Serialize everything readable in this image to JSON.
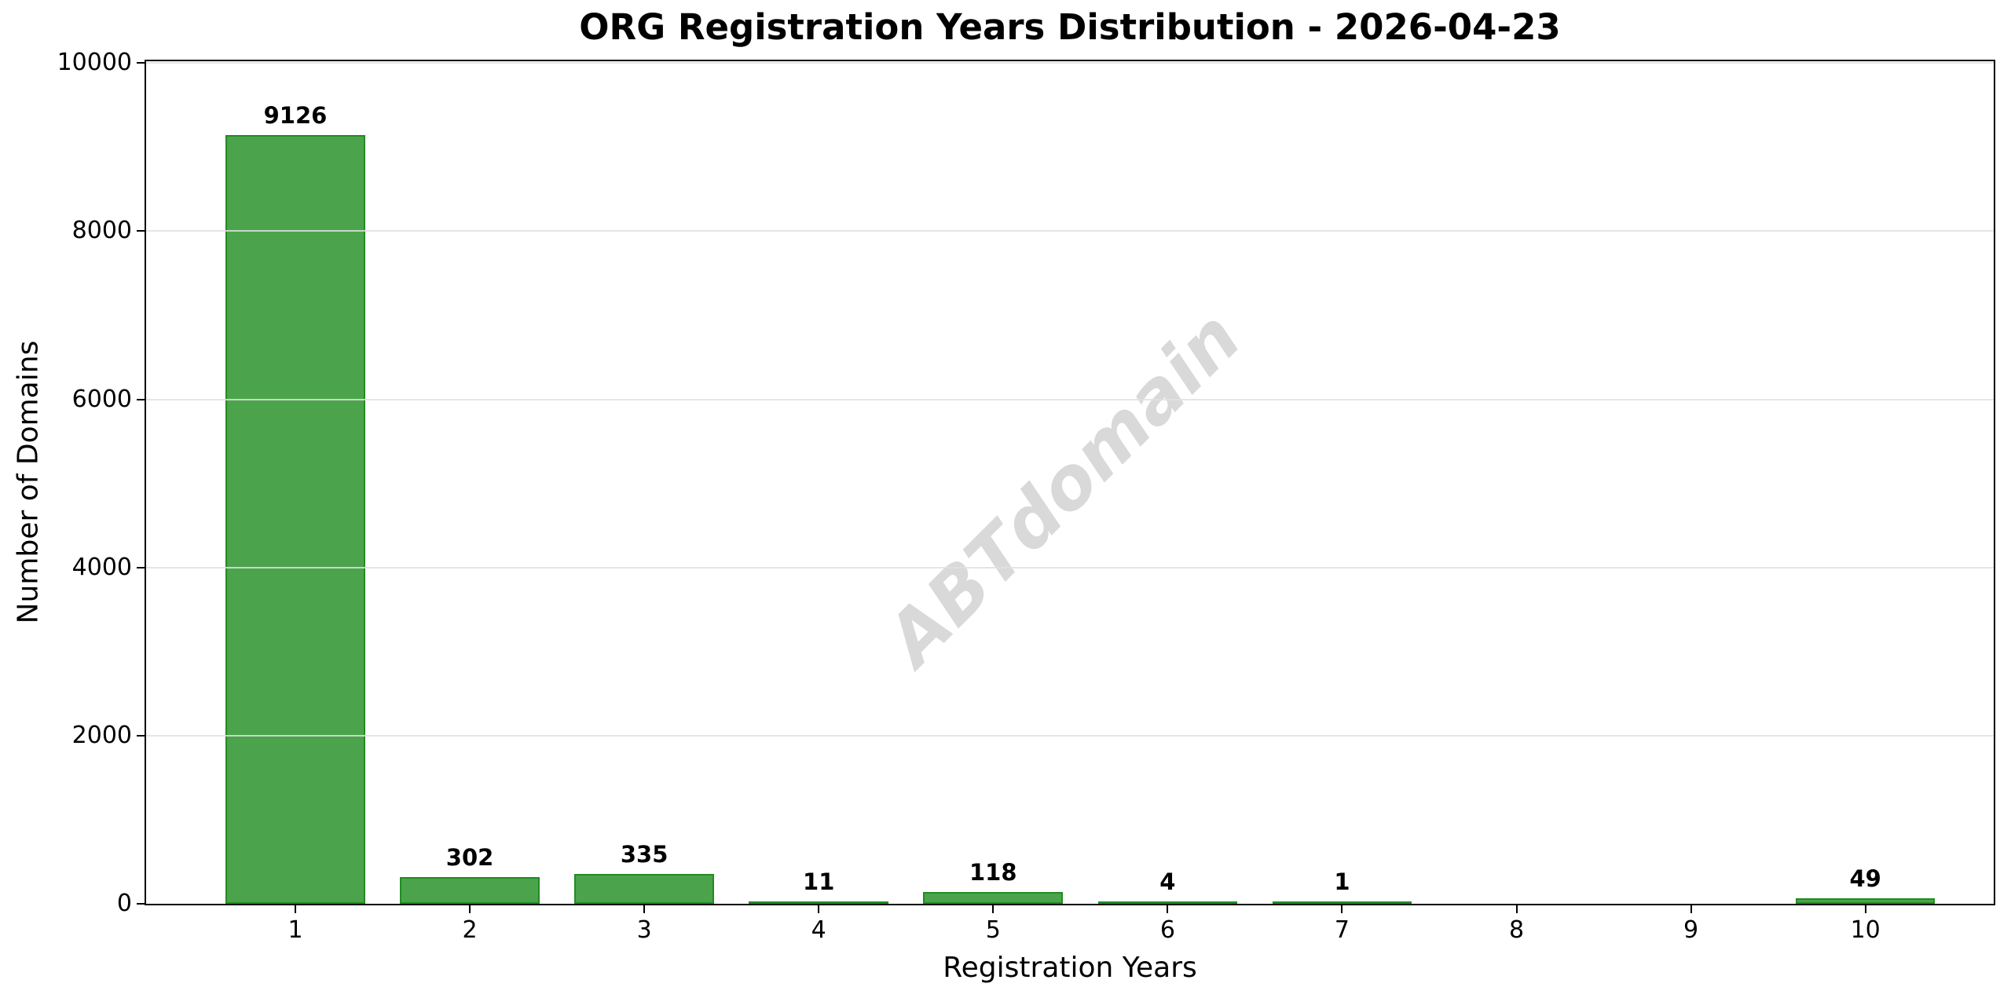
{
  "chart_data": {
    "type": "bar",
    "title": "ORG Registration Years Distribution - 2026-04-23",
    "xlabel": "Registration Years",
    "ylabel": "Number of Domains",
    "categories": [
      "1",
      "2",
      "3",
      "4",
      "5",
      "6",
      "7",
      "8",
      "9",
      "10"
    ],
    "values": [
      9126,
      302,
      335,
      11,
      118,
      4,
      1,
      0,
      0,
      49
    ],
    "bar_labels": [
      "9126",
      "302",
      "335",
      "11",
      "118",
      "4",
      "1",
      "",
      "",
      "49"
    ],
    "y_ticks": [
      0,
      2000,
      4000,
      6000,
      8000,
      10000
    ],
    "y_tick_labels": [
      "0",
      "2000",
      "4000",
      "6000",
      "8000",
      "10000"
    ],
    "ylim": [
      0,
      10000
    ],
    "grid": "horizontal-only",
    "legend": "none",
    "bar_color": "#4BA44B",
    "bar_edge_color": "#228B22",
    "grid_color": "#E0E0E0",
    "text_color": "#000000",
    "watermark": {
      "text": "ABTdomain",
      "color": "#D9D9D9",
      "rotation_deg": -45
    }
  }
}
